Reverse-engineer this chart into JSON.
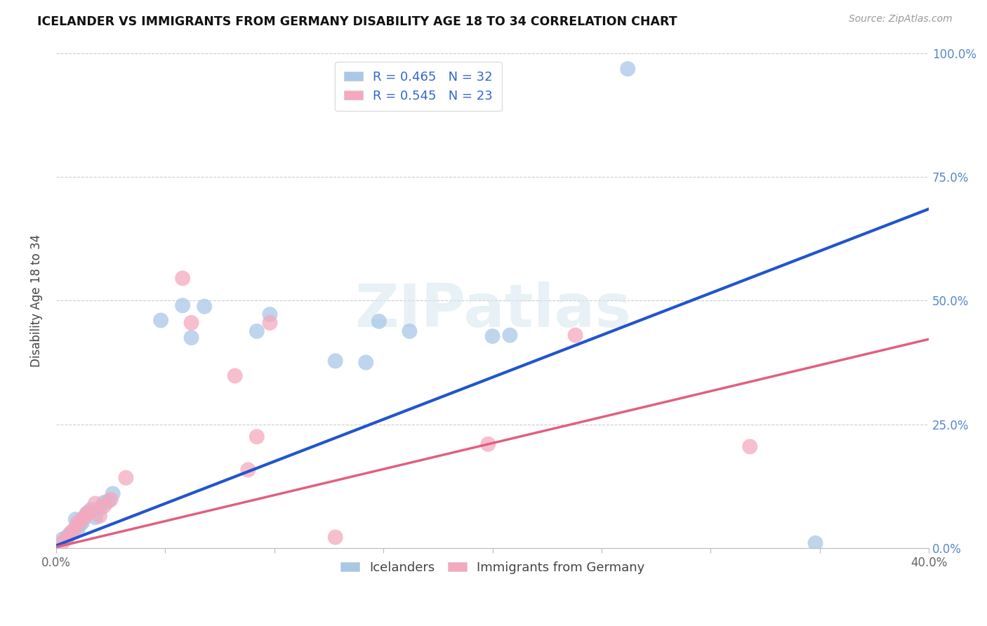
{
  "title": "ICELANDER VS IMMIGRANTS FROM GERMANY DISABILITY AGE 18 TO 34 CORRELATION CHART",
  "source": "Source: ZipAtlas.com",
  "ylabel": "Disability Age 18 to 34",
  "xlim": [
    0.0,
    0.4
  ],
  "ylim": [
    0.0,
    1.0
  ],
  "r_blue": 0.465,
  "n_blue": 32,
  "r_pink": 0.545,
  "n_pink": 23,
  "blue_color": "#a8c8e8",
  "pink_color": "#f5a8be",
  "blue_line_color": "#2255cc",
  "pink_line_color": "#e06080",
  "watermark_text": "ZIPatlas",
  "blue_x": [
    0.003,
    0.005,
    0.006,
    0.007,
    0.008,
    0.009,
    0.01,
    0.011,
    0.012,
    0.013,
    0.014,
    0.015,
    0.016,
    0.018,
    0.02,
    0.022,
    0.024,
    0.026,
    0.048,
    0.058,
    0.062,
    0.068,
    0.092,
    0.098,
    0.128,
    0.142,
    0.148,
    0.162,
    0.2,
    0.208,
    0.262,
    0.348
  ],
  "blue_y": [
    0.018,
    0.022,
    0.027,
    0.03,
    0.035,
    0.058,
    0.038,
    0.048,
    0.052,
    0.062,
    0.07,
    0.072,
    0.078,
    0.062,
    0.08,
    0.092,
    0.095,
    0.11,
    0.46,
    0.49,
    0.425,
    0.488,
    0.438,
    0.472,
    0.378,
    0.375,
    0.458,
    0.438,
    0.428,
    0.43,
    0.968,
    0.01
  ],
  "pink_x": [
    0.003,
    0.005,
    0.007,
    0.009,
    0.01,
    0.012,
    0.014,
    0.015,
    0.018,
    0.02,
    0.022,
    0.025,
    0.032,
    0.058,
    0.062,
    0.082,
    0.088,
    0.092,
    0.098,
    0.128,
    0.198,
    0.238,
    0.318
  ],
  "pink_y": [
    0.012,
    0.02,
    0.032,
    0.042,
    0.052,
    0.058,
    0.068,
    0.072,
    0.09,
    0.065,
    0.085,
    0.098,
    0.142,
    0.545,
    0.455,
    0.348,
    0.158,
    0.225,
    0.455,
    0.022,
    0.21,
    0.43,
    0.205
  ],
  "blue_line_intercept": 0.005,
  "blue_line_slope": 1.7,
  "pink_line_intercept": 0.002,
  "pink_line_slope": 1.05
}
